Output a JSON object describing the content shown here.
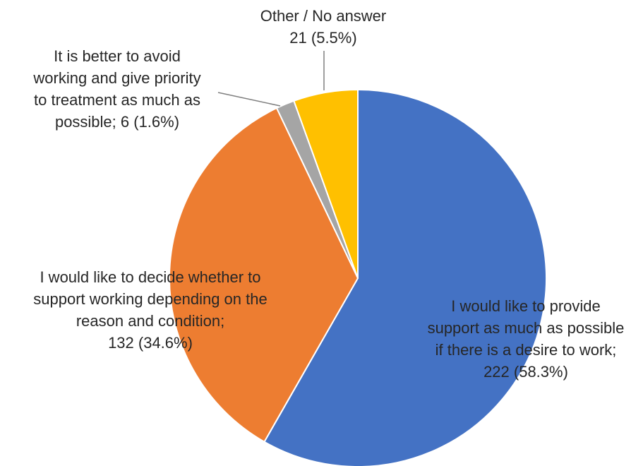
{
  "chart_data": {
    "type": "pie",
    "slices": [
      {
        "category": "I would like to provide support as much as possible if there is a desire to work",
        "count": 222,
        "percent": 58.3,
        "color": "#4472C4",
        "label_lines": [
          "I would like to provide",
          "support as much as possible",
          "if there is a desire to work;",
          "222 (58.3%)"
        ]
      },
      {
        "category": "I would like to decide whether to support working depending on the reason and condition",
        "count": 132,
        "percent": 34.6,
        "color": "#ED7D31",
        "label_lines": [
          "I would like to decide whether to",
          "support working depending on the",
          "reason and condition;",
          "132 (34.6%)"
        ]
      },
      {
        "category": "It is better to avoid working and give priority to treatment as much as possible",
        "count": 6,
        "percent": 1.6,
        "color": "#A5A5A5",
        "label_lines": [
          "It is better to avoid",
          "working and give priority",
          "to treatment as much as",
          "possible; 6 (1.6%)"
        ]
      },
      {
        "category": "Other / No answer",
        "count": 21,
        "percent": 5.5,
        "color": "#FFC000",
        "label_lines": [
          "Other / No answer",
          "21 (5.5%)"
        ]
      }
    ],
    "start_angle_deg": 0,
    "direction": "clockwise",
    "legend": "none"
  }
}
